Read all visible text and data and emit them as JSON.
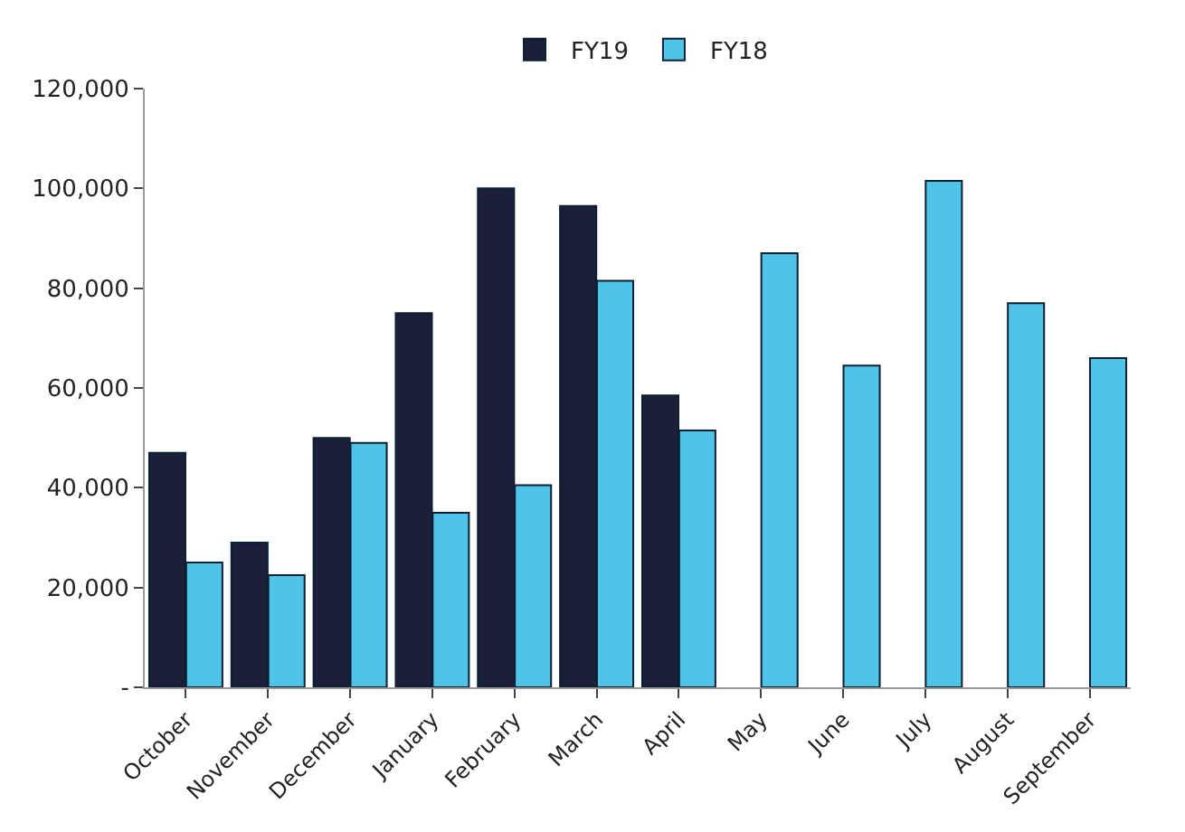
{
  "chart_data": {
    "type": "bar",
    "categories": [
      "October",
      "November",
      "December",
      "January",
      "February",
      "March",
      "April",
      "May",
      "June",
      "July",
      "August",
      "September"
    ],
    "series": [
      {
        "name": "FY19",
        "color": "#1c1f3a",
        "values": [
          47000,
          29000,
          50000,
          75000,
          100000,
          96500,
          58500,
          null,
          null,
          null,
          null,
          null
        ]
      },
      {
        "name": "FY18",
        "color": "#4fc3e8",
        "values": [
          25000,
          22500,
          49000,
          35000,
          40500,
          81500,
          51500,
          87000,
          64500,
          101500,
          77000,
          66000
        ]
      }
    ],
    "ylim": [
      0,
      120000
    ],
    "yticks": [
      {
        "value": 0,
        "label": "-"
      },
      {
        "value": 20000,
        "label": "20,000"
      },
      {
        "value": 40000,
        "label": "40,000"
      },
      {
        "value": 60000,
        "label": "60,000"
      },
      {
        "value": 80000,
        "label": "80,000"
      },
      {
        "value": 100000,
        "label": "100,000"
      },
      {
        "value": 120000,
        "label": "120,000"
      }
    ],
    "legend": "top"
  }
}
